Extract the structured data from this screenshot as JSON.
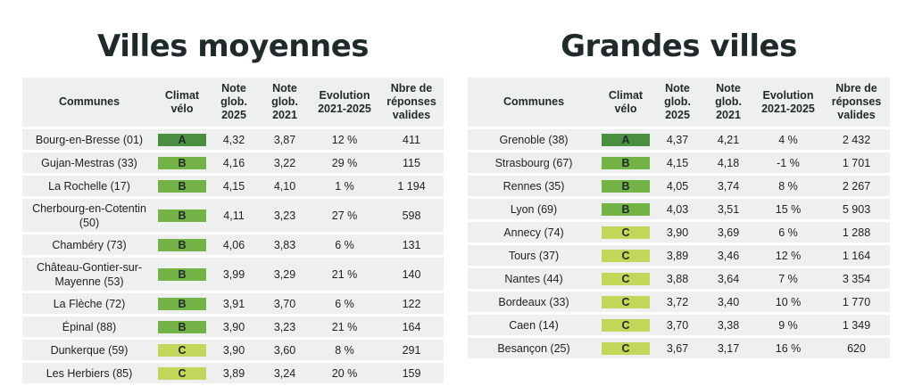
{
  "colors": {
    "A": "#4a8f3f",
    "B": "#74b447",
    "C": "#c4d65a",
    "row_bg": "#eef0ef"
  },
  "left": {
    "title": "Villes moyennes",
    "headers": {
      "communes": "Communes",
      "climat": "Climat vélo",
      "note2025": "Note glob. 2025",
      "note2021": "Note glob. 2021",
      "evolution": "Evolution 2021-2025",
      "reponses": "Nbre de réponses valides"
    },
    "rows": [
      {
        "commune": "Bourg-en-Bresse (01)",
        "grade": "A",
        "note2025": "4,32",
        "note2021": "3,87",
        "evolution": "12 %",
        "reponses": "411"
      },
      {
        "commune": "Gujan-Mestras (33)",
        "grade": "B",
        "note2025": "4,16",
        "note2021": "3,22",
        "evolution": "29 %",
        "reponses": "115"
      },
      {
        "commune": "La Rochelle (17)",
        "grade": "B",
        "note2025": "4,15",
        "note2021": "4,10",
        "evolution": "1 %",
        "reponses": "1 194"
      },
      {
        "commune": "Cherbourg-en-Cotentin (50)",
        "grade": "B",
        "note2025": "4,11",
        "note2021": "3,23",
        "evolution": "27 %",
        "reponses": "598"
      },
      {
        "commune": "Chambéry (73)",
        "grade": "B",
        "note2025": "4,06",
        "note2021": "3,83",
        "evolution": "6 %",
        "reponses": "131"
      },
      {
        "commune": "Château-Gontier-sur-Mayenne (53)",
        "grade": "B",
        "note2025": "3,99",
        "note2021": "3,29",
        "evolution": "21 %",
        "reponses": "140"
      },
      {
        "commune": "La Flèche (72)",
        "grade": "B",
        "note2025": "3,91",
        "note2021": "3,70",
        "evolution": "6 %",
        "reponses": "122"
      },
      {
        "commune": "Épinal (88)",
        "grade": "B",
        "note2025": "3,90",
        "note2021": "3,23",
        "evolution": "21 %",
        "reponses": "164"
      },
      {
        "commune": "Dunkerque (59)",
        "grade": "C",
        "note2025": "3,90",
        "note2021": "3,60",
        "evolution": "8 %",
        "reponses": "291"
      },
      {
        "commune": "Les Herbiers (85)",
        "grade": "C",
        "note2025": "3,89",
        "note2021": "3,24",
        "evolution": "20 %",
        "reponses": "159"
      }
    ]
  },
  "right": {
    "title": "Grandes villes",
    "headers": {
      "communes": "Communes",
      "climat": "Climat vélo",
      "note2025": "Note glob. 2025",
      "note2021": "Note glob. 2021",
      "evolution": "Evolution 2021-2025",
      "reponses": "Nbre de réponses valides"
    },
    "rows": [
      {
        "commune": "Grenoble (38)",
        "grade": "A",
        "note2025": "4,37",
        "note2021": "4,21",
        "evolution": "4 %",
        "reponses": "2 432"
      },
      {
        "commune": "Strasbourg (67)",
        "grade": "B",
        "note2025": "4,15",
        "note2021": "4,18",
        "evolution": "-1 %",
        "reponses": "1 701"
      },
      {
        "commune": "Rennes (35)",
        "grade": "B",
        "note2025": "4,05",
        "note2021": "3,74",
        "evolution": "8 %",
        "reponses": "2 267"
      },
      {
        "commune": "Lyon (69)",
        "grade": "B",
        "note2025": "4,03",
        "note2021": "3,51",
        "evolution": "15 %",
        "reponses": "5 903"
      },
      {
        "commune": "Annecy (74)",
        "grade": "C",
        "note2025": "3,90",
        "note2021": "3,69",
        "evolution": "6 %",
        "reponses": "1 288"
      },
      {
        "commune": "Tours (37)",
        "grade": "C",
        "note2025": "3,89",
        "note2021": "3,46",
        "evolution": "12 %",
        "reponses": "1 164"
      },
      {
        "commune": "Nantes (44)",
        "grade": "C",
        "note2025": "3,88",
        "note2021": "3,64",
        "evolution": "7 %",
        "reponses": "3 354"
      },
      {
        "commune": "Bordeaux (33)",
        "grade": "C",
        "note2025": "3,72",
        "note2021": "3,40",
        "evolution": "10 %",
        "reponses": "1 770"
      },
      {
        "commune": "Caen (14)",
        "grade": "C",
        "note2025": "3,70",
        "note2021": "3,38",
        "evolution": "9 %",
        "reponses": "1 349"
      },
      {
        "commune": "Besançon (25)",
        "grade": "C",
        "note2025": "3,67",
        "note2021": "3,17",
        "evolution": "16 %",
        "reponses": "620"
      }
    ]
  }
}
